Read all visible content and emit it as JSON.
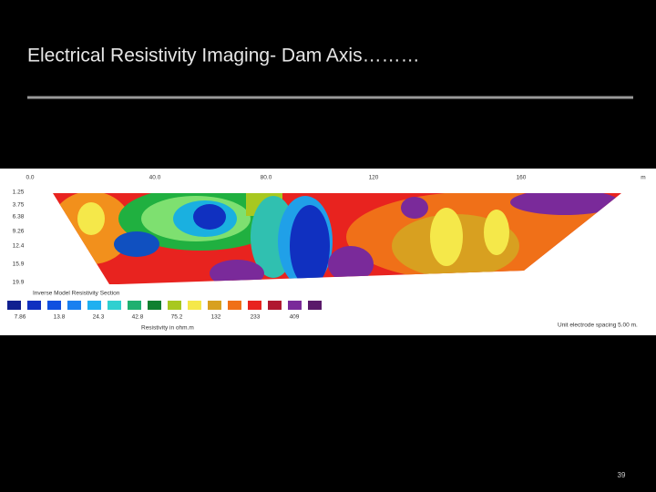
{
  "header": {
    "title": "Electrical Resistivity Imaging- Dam Axis………"
  },
  "section": {
    "x_labels": [
      "0.0",
      "40.0",
      "80.0",
      "120",
      "160",
      "m"
    ],
    "depth_labels": [
      "1.25",
      "3.75",
      "6.38",
      "9.26",
      "12.4",
      "15.9",
      "19.9"
    ],
    "legend_title": "Inverse Model Resistivity Section",
    "legend_values": [
      "7.86",
      "13.8",
      "24.3",
      "42.8",
      "75.2",
      "132",
      "233",
      "409"
    ],
    "unit_label": "Resistivity in ohm.m",
    "spacing_note": "Unit electrode spacing 5.00 m."
  },
  "footer": {
    "page_number": "39"
  }
}
